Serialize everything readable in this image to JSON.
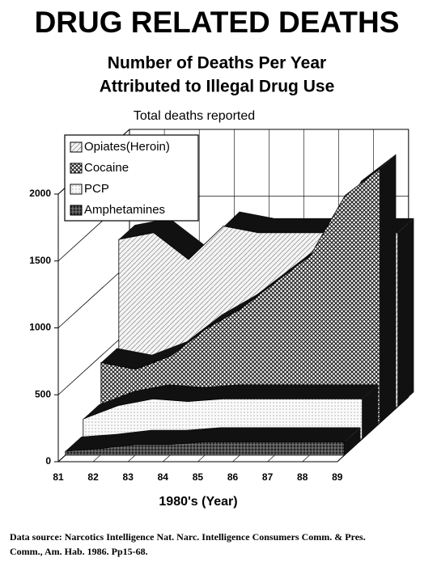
{
  "chart_data": {
    "type": "area3d",
    "title": "DRUG RELATED DEATHS",
    "subtitle": [
      "Number of Deaths Per Year",
      "Attributed to Illegal Drug Use"
    ],
    "y_axis_label": "Total deaths reported",
    "x_axis_label": "1980's (Year)",
    "source": [
      "Data source: Narcotics Intelligence Nat. Narc. Intelligence Consumers Comm. & Pres.",
      "Comm., Am. Hab. 1986. Pp15-68."
    ],
    "categories": [
      "81",
      "82",
      "83",
      "84",
      "85",
      "86",
      "87",
      "88",
      "89"
    ],
    "ylim": [
      0,
      2000
    ],
    "yticks": [
      0,
      500,
      1000,
      1500,
      2000
    ],
    "series": [
      {
        "name": "Opiates(Heroin)",
        "color": "#e8e8e8",
        "values": [
          1250,
          1300,
          1100,
          1350,
          1300,
          1300,
          1300,
          1300,
          1300
        ]
      },
      {
        "name": "Cocaine",
        "color": "#555555",
        "values": [
          450,
          400,
          500,
          700,
          850,
          1050,
          1250,
          1700,
          1900
        ]
      },
      {
        "name": "PCP",
        "color": "#f2f2f2",
        "values": [
          150,
          250,
          300,
          280,
          300,
          300,
          300,
          300,
          300
        ]
      },
      {
        "name": "Amphetamines",
        "color": "#333333",
        "values": [
          30,
          50,
          80,
          80,
          100,
          100,
          100,
          100,
          100
        ]
      }
    ]
  }
}
